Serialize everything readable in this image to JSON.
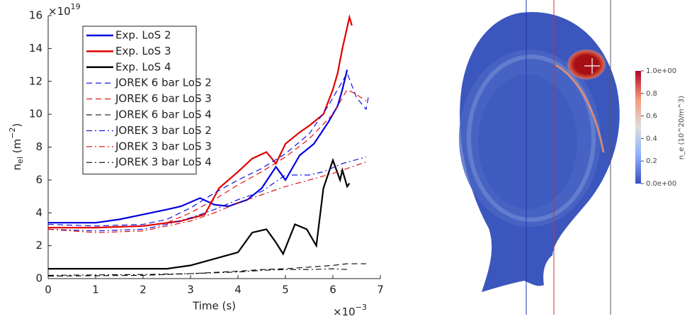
{
  "chart_data": [
    {
      "type": "line",
      "xlabel": "Time (s)",
      "x_multiplier": {
        "base": "×10",
        "exp": "−3"
      },
      "y_multiplier": {
        "base": "×10",
        "exp": "19"
      },
      "ylabel": {
        "base": "n",
        "sub": "el",
        "mid": " (m",
        "sup": "−2",
        "end": ")"
      },
      "xlim": [
        0,
        7
      ],
      "xticks": [
        0,
        1,
        2,
        3,
        4,
        5,
        6,
        7
      ],
      "ylim": [
        0,
        16
      ],
      "yticks": [
        0,
        2,
        4,
        6,
        8,
        10,
        12,
        14,
        16
      ],
      "legend": "upper-left",
      "series": [
        {
          "name": "Exp. LoS 2",
          "color": "#0000e0",
          "linestyle": "solid",
          "x": [
            0,
            1,
            1.5,
            2,
            2.5,
            2.8,
            3.2,
            3.5,
            3.8,
            4.2,
            4.5,
            4.8,
            5.0,
            5.3,
            5.6,
            5.9,
            6.1,
            6.2,
            6.3
          ],
          "values": [
            3.4,
            3.4,
            3.6,
            3.9,
            4.2,
            4.4,
            4.9,
            4.5,
            4.4,
            4.8,
            5.5,
            6.8,
            6.0,
            7.5,
            8.2,
            9.5,
            10.5,
            11.5,
            12.7
          ]
        },
        {
          "name": "Exp. LoS 3",
          "color": "#e00000",
          "linestyle": "solid",
          "x": [
            0,
            1,
            2,
            2.8,
            3.3,
            3.6,
            4.0,
            4.3,
            4.6,
            4.8,
            5.0,
            5.3,
            5.5,
            5.8,
            6.0,
            6.1,
            6.2,
            6.35,
            6.4
          ],
          "values": [
            3.1,
            3.1,
            3.2,
            3.5,
            3.9,
            5.5,
            6.5,
            7.3,
            7.7,
            7.0,
            8.2,
            8.9,
            9.3,
            10.0,
            11.5,
            12.5,
            14.0,
            15.9,
            15.4
          ]
        },
        {
          "name": "Exp. LoS 4",
          "color": "#000000",
          "linestyle": "solid",
          "x": [
            0,
            1,
            2,
            2.5,
            3,
            3.5,
            4,
            4.3,
            4.6,
            4.8,
            4.95,
            5.2,
            5.45,
            5.65,
            5.8,
            6.0,
            6.15,
            6.2,
            6.3,
            6.35
          ],
          "values": [
            0.6,
            0.6,
            0.6,
            0.6,
            0.8,
            1.2,
            1.6,
            2.8,
            3.0,
            2.2,
            1.5,
            3.3,
            3.0,
            2.0,
            5.5,
            7.2,
            6.0,
            6.6,
            5.6,
            5.8
          ]
        },
        {
          "name": "JOREK 6 bar LoS 2",
          "color": "#0000e0",
          "linestyle": "dashed",
          "x": [
            0,
            1,
            2,
            2.5,
            3,
            3.5,
            4,
            4.5,
            5,
            5.5,
            5.9,
            6.3,
            6.5,
            6.7,
            6.75
          ],
          "values": [
            3.3,
            3.2,
            3.3,
            3.6,
            4.3,
            5.2,
            6.0,
            6.7,
            7.6,
            8.8,
            10.5,
            12.5,
            11.0,
            10.3,
            11.1
          ]
        },
        {
          "name": "JOREK 6 bar LoS 3",
          "color": "#e00000",
          "linestyle": "dashed",
          "x": [
            0,
            1,
            2,
            2.5,
            3,
            3.5,
            4,
            4.5,
            5,
            5.5,
            6,
            6.3,
            6.5,
            6.7
          ],
          "values": [
            3.1,
            3.1,
            3.2,
            3.4,
            4.0,
            4.8,
            5.7,
            6.5,
            7.4,
            8.5,
            10.0,
            11.5,
            11.2,
            10.8
          ]
        },
        {
          "name": "JOREK 6 bar LoS 4",
          "color": "#000000",
          "linestyle": "dashed",
          "x": [
            0,
            2,
            3,
            4,
            4.5,
            5,
            5.5,
            6,
            6.3,
            6.7
          ],
          "values": [
            0.15,
            0.2,
            0.3,
            0.45,
            0.55,
            0.6,
            0.7,
            0.8,
            0.9,
            0.9
          ]
        },
        {
          "name": "JOREK 3 bar LoS 2",
          "color": "#0000e0",
          "linestyle": "dashdot",
          "x": [
            0,
            1,
            2,
            2.5,
            3,
            3.5,
            4,
            4.5,
            5,
            5.5,
            5.8,
            6.2,
            6.7
          ],
          "values": [
            3.0,
            2.9,
            3.0,
            3.3,
            3.7,
            4.2,
            4.8,
            5.3,
            6.3,
            6.3,
            6.5,
            7.0,
            7.4
          ]
        },
        {
          "name": "JOREK 3 bar LoS 3",
          "color": "#e00000",
          "linestyle": "dashdot",
          "x": [
            0,
            1,
            2,
            2.5,
            3,
            3.5,
            4,
            4.5,
            5,
            5.5,
            6,
            6.4,
            6.7
          ],
          "values": [
            3.0,
            2.8,
            2.9,
            3.2,
            3.5,
            4.0,
            4.6,
            5.1,
            5.6,
            6.0,
            6.4,
            6.8,
            7.1
          ]
        },
        {
          "name": "JOREK 3 bar LoS 4",
          "color": "#000000",
          "linestyle": "dashdot",
          "x": [
            0,
            2,
            3,
            4,
            4.5,
            5,
            5.5,
            6,
            6.3
          ],
          "values": [
            0.2,
            0.25,
            0.3,
            0.4,
            0.5,
            0.55,
            0.55,
            0.6,
            0.55
          ]
        }
      ]
    },
    {
      "type": "colorbar",
      "label": "n_e (10^20/m^3)",
      "clim": [
        0,
        1
      ],
      "colors": [
        "#3b4cc0",
        "#8db0fe",
        "#dddddd",
        "#f49a7b",
        "#b40426"
      ],
      "ticks": [
        {
          "value": 0,
          "label": "0.0e+00"
        },
        0.2,
        0.4,
        0.6,
        0.8,
        {
          "value": 1,
          "label": "1.0e+00"
        }
      ]
    }
  ]
}
